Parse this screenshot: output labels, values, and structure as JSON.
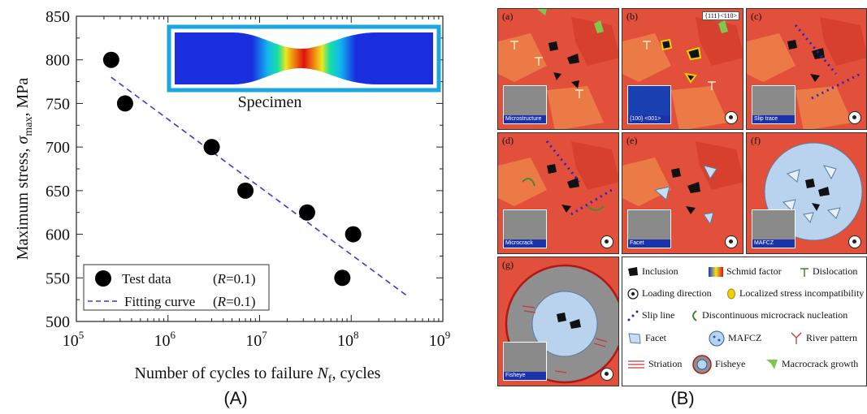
{
  "figure": {
    "caption_a": "(A)",
    "caption_b": "(B)"
  },
  "chart_data": {
    "type": "scatter",
    "xlabel": "Number of cycles to failure N_f, cycles",
    "xlabel_main": "Number of cycles to failure ",
    "xlabel_sym": "N",
    "xlabel_sub": "f",
    "xlabel_tail": ", cycles",
    "ylabel_main": "Maximum stress, ",
    "ylabel_sym": "σ",
    "ylabel_sub": "max",
    "ylabel_tail": ", MPa",
    "x_scale": "log",
    "xlim": [
      100000,
      1000000000
    ],
    "ylim": [
      500,
      850
    ],
    "x_ticks": [
      {
        "base": "10",
        "exp": "5",
        "value": 100000
      },
      {
        "base": "10",
        "exp": "6",
        "value": 1000000
      },
      {
        "base": "10",
        "exp": "7",
        "value": 10000000
      },
      {
        "base": "10",
        "exp": "8",
        "value": 100000000
      },
      {
        "base": "10",
        "exp": "9",
        "value": 1000000000
      }
    ],
    "y_ticks": [
      "500",
      "550",
      "600",
      "650",
      "700",
      "750",
      "800",
      "850"
    ],
    "series": [
      {
        "name": "Test data",
        "kind": "points",
        "x": [
          240000,
          340000,
          3000000,
          7000000,
          33000000,
          80000000,
          105000000
        ],
        "y": [
          800,
          750,
          700,
          650,
          625,
          550,
          600
        ]
      },
      {
        "name": "Fitting curve",
        "kind": "dashed-line",
        "x": [
          240000,
          400000000
        ],
        "y": [
          780,
          530
        ]
      }
    ],
    "legend": {
      "position": "bottom-left",
      "entries": [
        {
          "label": "Test data",
          "cond_italic": "R",
          "cond_rest": "=0.1"
        },
        {
          "label": "Fitting curve",
          "cond_italic": "R",
          "cond_rest": "=0.1"
        }
      ]
    },
    "inset": {
      "label": "Specimen"
    },
    "colors": {
      "points": "#000000",
      "fit_line": "#3a3acc",
      "inset_border": "#1aa6e0",
      "specimen_blue": "#1a2ee0"
    }
  },
  "schematic": {
    "cells": [
      {
        "id": "a",
        "label": "(a)",
        "inset_caption": "Microstructure",
        "show_load": false
      },
      {
        "id": "b",
        "label": "(b)",
        "inset_caption": "{100} <001>",
        "show_load": true,
        "top_tag": "{111}<110>"
      },
      {
        "id": "c",
        "label": "(c)",
        "inset_caption": "Slip trace",
        "show_load": true
      },
      {
        "id": "d",
        "label": "(d)",
        "inset_caption": "Microcrack",
        "show_load": true
      },
      {
        "id": "e",
        "label": "(e)",
        "inset_caption": "Facet",
        "show_load": true
      },
      {
        "id": "f",
        "label": "(f)",
        "inset_caption": "MAFCZ",
        "show_load": true
      },
      {
        "id": "g",
        "label": "(g)",
        "inset_caption": "Fisheye",
        "show_load": true
      }
    ],
    "legend_items": [
      {
        "name": "inclusion",
        "text": "Inclusion"
      },
      {
        "name": "schmid-factor",
        "text": "Schmid factor"
      },
      {
        "name": "dislocation",
        "text": "Dislocation"
      },
      {
        "name": "loading-direction",
        "text": "Loading direction"
      },
      {
        "name": "stress-incompatibility",
        "text": "Localized stress incompatibility"
      },
      {
        "name": "slip-line",
        "text": "Slip line"
      },
      {
        "name": "microcrack-nucleation",
        "text": "Discontinuous microcrack nucleation"
      },
      {
        "name": "facet",
        "text": "Facet"
      },
      {
        "name": "mafcz",
        "text": "MAFCZ"
      },
      {
        "name": "river-pattern",
        "text": "River pattern"
      },
      {
        "name": "striation",
        "text": "Striation"
      },
      {
        "name": "fisheye",
        "text": "Fisheye"
      },
      {
        "name": "macrocrack-growth",
        "text": "Macrocrack growth"
      }
    ],
    "colors": {
      "grain_a": "#e2503c",
      "grain_b": "#ec7a47",
      "grain_c": "#d8402e",
      "inclusion": "#111111",
      "facet": "#c9ddf2",
      "mafcz": "#b9d3ee",
      "fisheye_ring": "#8f8f8f",
      "fisheye_edge": "#b01818",
      "green": "#7ec850",
      "slip": "#2222cc"
    }
  }
}
